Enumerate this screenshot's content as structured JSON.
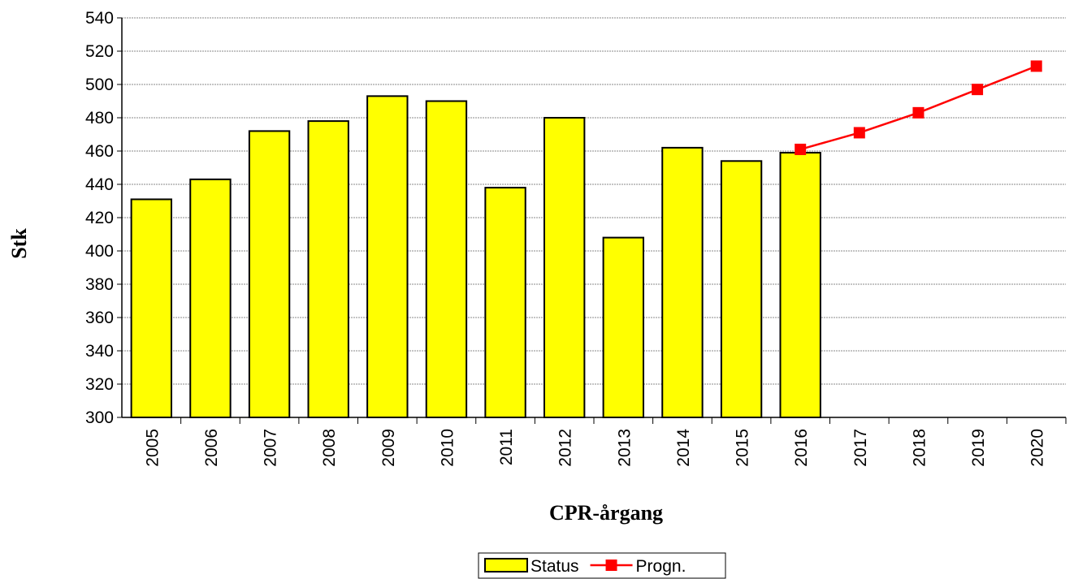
{
  "chart_data": {
    "type": "combo",
    "y_label": "Stk",
    "x_label": "CPR-årgang",
    "categories": [
      "2005",
      "2006",
      "2007",
      "2008",
      "2009",
      "2010",
      "2011",
      "2012",
      "2013",
      "2014",
      "2015",
      "2016",
      "2017",
      "2018",
      "2019",
      "2020"
    ],
    "series": [
      {
        "name": "Status",
        "type": "bar",
        "color": "#ffff00",
        "values": [
          431,
          443,
          472,
          478,
          493,
          490,
          438,
          480,
          408,
          462,
          454,
          459,
          null,
          null,
          null,
          null
        ]
      },
      {
        "name": "Progn.",
        "type": "line",
        "color": "#ff0000",
        "values": [
          null,
          null,
          null,
          null,
          null,
          null,
          null,
          null,
          null,
          null,
          null,
          461,
          471,
          483,
          497,
          511
        ]
      }
    ],
    "ylim": [
      300,
      540
    ],
    "yticks": [
      300,
      320,
      340,
      360,
      380,
      400,
      420,
      440,
      460,
      480,
      500,
      520,
      540
    ],
    "grid": true
  }
}
